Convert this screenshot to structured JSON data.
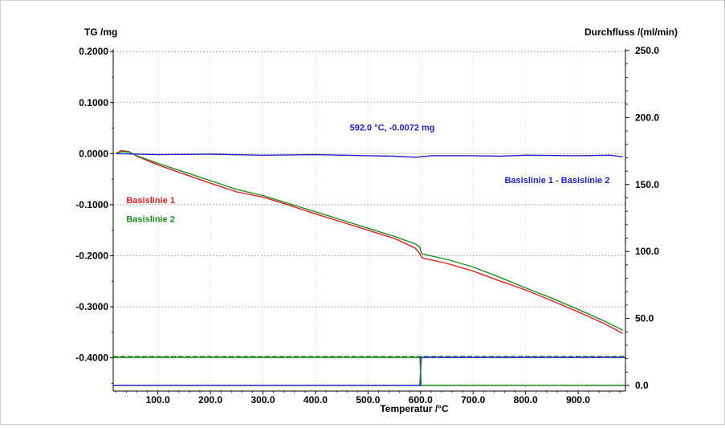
{
  "chart_data": {
    "type": "line",
    "xlabel": "Temperatur /°C",
    "ylabel_left": "TG /mg",
    "ylabel_right": "Durchfluss /(ml/min)",
    "xlim": [
      15,
      990
    ],
    "ylim_left": [
      -0.465,
      0.205
    ],
    "ylim_right": [
      0,
      250
    ],
    "x_ticks": [
      "100.0",
      "200.0",
      "300.0",
      "400.0",
      "500.0",
      "600.0",
      "700.0",
      "800.0",
      "900.0"
    ],
    "x_tick_values": [
      100,
      200,
      300,
      400,
      500,
      600,
      700,
      800,
      900
    ],
    "y_left_ticks": [
      "0.2000",
      "0.1000",
      "0.0000",
      "-0.1000",
      "-0.2000",
      "-0.3000",
      "-0.4000"
    ],
    "y_left_tick_values": [
      0.2,
      0.1,
      0.0,
      -0.1,
      -0.2,
      -0.3,
      -0.4
    ],
    "y_right_ticks": [
      "250.0",
      "200.0",
      "150.0",
      "100.0",
      "50.0",
      "0.0"
    ],
    "y_right_tick_values": [
      250,
      200,
      150,
      100,
      50,
      0
    ],
    "grid": true,
    "annotation": {
      "text": "592.0 °C, -0.0072 mg",
      "x": 592,
      "y": 0.008,
      "color": "#1f1fc8"
    },
    "series": [
      {
        "name": "Basislinie 1",
        "axis": "left",
        "color": "#e02020",
        "x": [
          20,
          30,
          45,
          60,
          100,
          150,
          200,
          250,
          300,
          350,
          400,
          450,
          500,
          550,
          590,
          598,
          602,
          606,
          650,
          700,
          750,
          800,
          850,
          900,
          950,
          985
        ],
        "y": [
          0.0,
          0.006,
          0.004,
          -0.005,
          -0.022,
          -0.04,
          -0.058,
          -0.075,
          -0.085,
          -0.101,
          -0.118,
          -0.134,
          -0.15,
          -0.166,
          -0.185,
          -0.195,
          -0.203,
          -0.205,
          -0.215,
          -0.23,
          -0.249,
          -0.267,
          -0.288,
          -0.31,
          -0.333,
          -0.352
        ]
      },
      {
        "name": "Basislinie 2",
        "axis": "left",
        "color": "#1e8c1e",
        "x": [
          20,
          30,
          45,
          60,
          100,
          150,
          200,
          250,
          300,
          350,
          400,
          450,
          500,
          550,
          590,
          598,
          602,
          606,
          650,
          700,
          750,
          800,
          850,
          900,
          950,
          985
        ],
        "y": [
          0.0,
          0.004,
          0.003,
          -0.004,
          -0.019,
          -0.036,
          -0.053,
          -0.07,
          -0.082,
          -0.098,
          -0.114,
          -0.13,
          -0.146,
          -0.162,
          -0.177,
          -0.182,
          -0.196,
          -0.197,
          -0.207,
          -0.222,
          -0.242,
          -0.263,
          -0.283,
          -0.305,
          -0.328,
          -0.346
        ]
      },
      {
        "name": "Basislinie 1 - Basislinie 2",
        "axis": "left",
        "color": "#1f1fc8",
        "x": [
          20,
          100,
          200,
          300,
          400,
          500,
          550,
          592,
          600,
          620,
          700,
          750,
          800,
          900,
          960,
          985
        ],
        "y": [
          0.0,
          -0.002,
          -0.001,
          -0.003,
          -0.002,
          -0.004,
          -0.005,
          -0.0072,
          -0.006,
          -0.004,
          -0.004,
          -0.005,
          -0.003,
          -0.004,
          -0.003,
          -0.006
        ]
      }
    ],
    "flow_series": [
      {
        "axis": "right",
        "color": "#1e8c1e",
        "dashed": true,
        "x": [
          15,
          990
        ],
        "y": [
          21.5,
          21.5
        ]
      },
      {
        "axis": "right",
        "color": "#1f1fc8",
        "x": [
          15,
          596,
          599,
          601,
          602,
          990
        ],
        "y": [
          0,
          0,
          0,
          21,
          21,
          21
        ]
      },
      {
        "axis": "right",
        "color": "#1e8c1e",
        "x": [
          15,
          596,
          599,
          601,
          602,
          990
        ],
        "y": [
          21,
          21,
          21,
          0,
          0,
          0
        ]
      }
    ],
    "series_labels": [
      {
        "text": "Basislinie 1",
        "color": "#e02020",
        "x": 40,
        "y": -0.097
      },
      {
        "text": "Basislinie 2",
        "color": "#1e8c1e",
        "x": 40,
        "y": -0.134
      },
      {
        "text": "Basislinie 1 - Basislinie 2",
        "color": "#1f1fc8",
        "x": 760,
        "y": -0.058
      }
    ]
  }
}
